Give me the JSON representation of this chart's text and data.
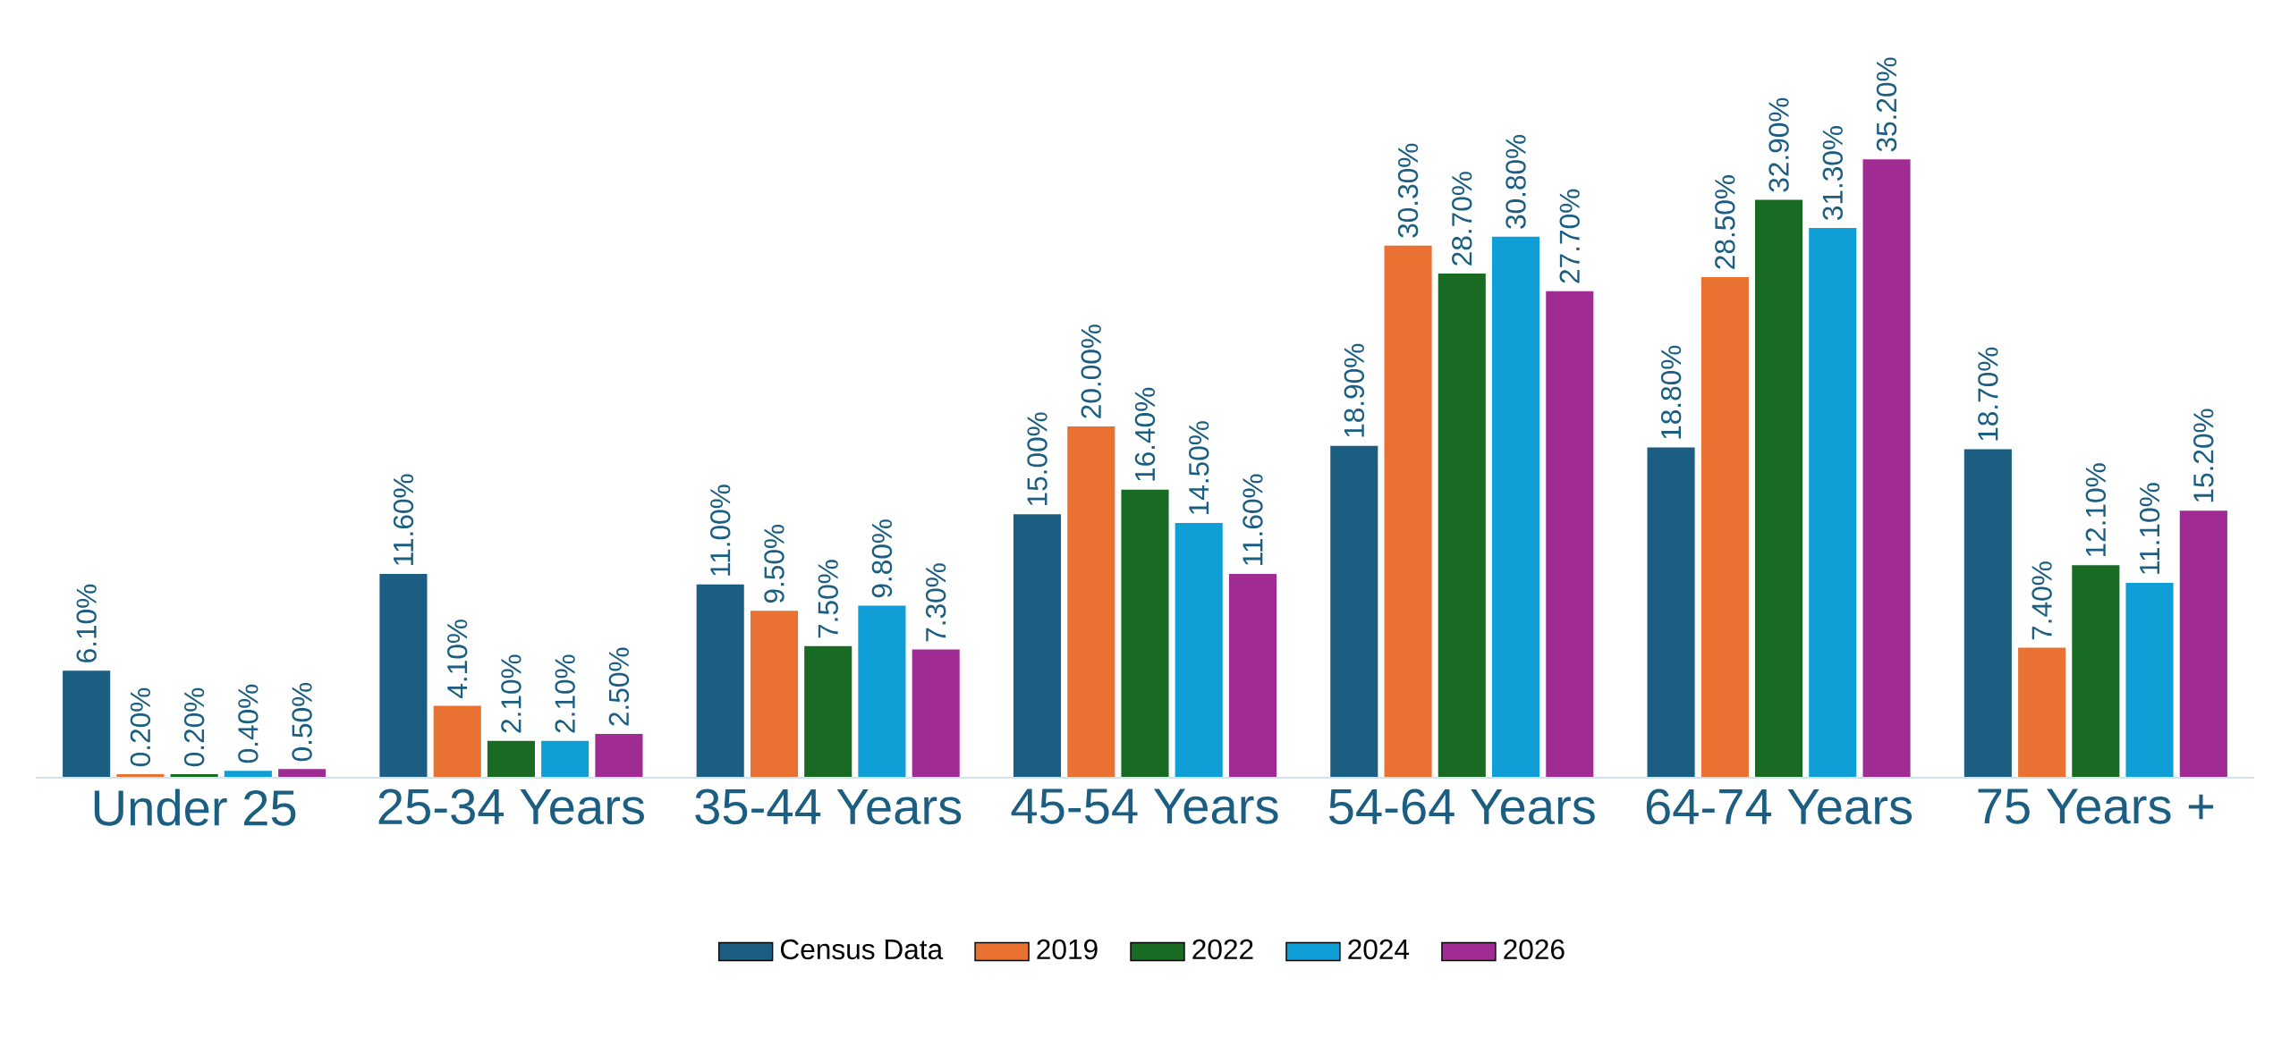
{
  "chart_data": {
    "type": "bar",
    "categories": [
      "Under 25",
      "25-34 Years",
      "35-44 Years",
      "45-54 Years",
      "54-64 Years",
      "64-74 Years",
      "75 Years +"
    ],
    "series": [
      {
        "name": "Census Data",
        "color": "#1b5e81",
        "values": [
          6.1,
          11.6,
          11.0,
          15.0,
          18.9,
          18.8,
          18.7
        ],
        "value_labels": [
          "6.10%",
          "11.60%",
          "11.00%",
          "15.00%",
          "18.90%",
          "18.80%",
          "18.70%"
        ]
      },
      {
        "name": "2019",
        "color": "#e97132",
        "values": [
          0.2,
          4.1,
          9.5,
          20.0,
          30.3,
          28.5,
          7.4
        ],
        "value_labels": [
          "0.20%",
          "4.10%",
          "9.50%",
          "20.00%",
          "30.30%",
          "28.50%",
          "7.40%"
        ]
      },
      {
        "name": "2022",
        "color": "#196b24",
        "values": [
          0.2,
          2.1,
          7.5,
          16.4,
          28.7,
          32.9,
          12.1
        ],
        "value_labels": [
          "0.20%",
          "2.10%",
          "7.50%",
          "16.40%",
          "28.70%",
          "32.90%",
          "12.10%"
        ]
      },
      {
        "name": "2024",
        "color": "#0f9ed5",
        "values": [
          0.4,
          2.1,
          9.8,
          14.5,
          30.8,
          31.3,
          11.1
        ],
        "value_labels": [
          "0.40%",
          "2.10%",
          "9.80%",
          "14.50%",
          "30.80%",
          "31.30%",
          "11.10%"
        ]
      },
      {
        "name": "2026",
        "color": "#a02b93",
        "values": [
          0.5,
          2.5,
          7.3,
          11.6,
          27.7,
          35.2,
          15.2
        ],
        "value_labels": [
          "0.50%",
          "2.50%",
          "7.30%",
          "11.60%",
          "27.70%",
          "35.20%",
          "15.20%"
        ]
      }
    ],
    "legend": "bottom"
  }
}
